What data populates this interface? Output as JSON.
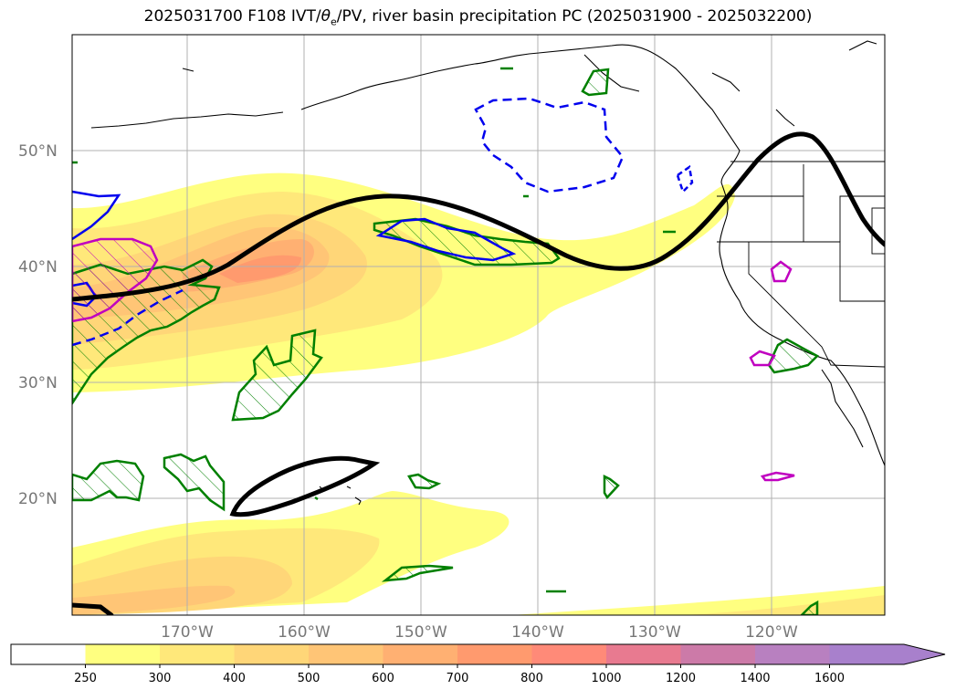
{
  "title": {
    "prefix": "2025031700 F108 IVT/",
    "theta": "θ",
    "sub": "e",
    "suffix": "/PV, river basin precipitation PC (2025031900 - 2025032200)"
  },
  "map": {
    "lat_labels": [
      "50°N",
      "40°N",
      "30°N",
      "20°N"
    ],
    "lon_labels": [
      "170°W",
      "160°W",
      "150°W",
      "140°W",
      "130°W",
      "120°W"
    ],
    "layers": {
      "ivt_fill": "IVT shading",
      "theta_e_pv": "black θe/PV contour",
      "precip_green": "green hatched precipitation",
      "precip_blue": "blue contours",
      "precip_magenta": "magenta contours"
    }
  },
  "colorbar": {
    "labels": [
      "250",
      "300",
      "400",
      "500",
      "600",
      "700",
      "800",
      "1000",
      "1200",
      "1400",
      "1600"
    ],
    "colors": [
      "#ffffff",
      "#ffff80",
      "#ffe87a",
      "#ffd678",
      "#ffc576",
      "#ffb072",
      "#ff9a6e",
      "#ff8a78",
      "#e87a90",
      "#cc7aa8",
      "#b880c0",
      "#a880cc"
    ]
  },
  "colors": {
    "coast": "#000000",
    "grid": "#b0b0b0",
    "ivt_low": "#ffff80",
    "ivt_mid": "#ffd678",
    "ivt_high": "#ff9a6e",
    "green": "#008000",
    "blue": "#0000ee",
    "magenta": "#c000c0"
  }
}
